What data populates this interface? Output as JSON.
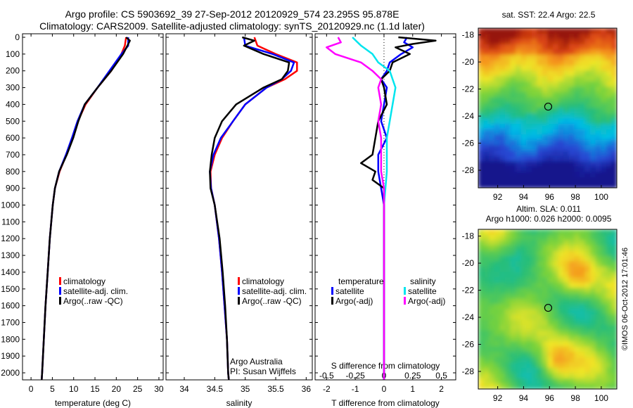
{
  "header": {
    "title1": "Argo profile: CS 5903692_39 27-Sep-2012 20120929_574 23.295S 95.878E",
    "title2": "Climatology: CARS2009. Satellite-adjusted climatology: synTS_20120929.nc (1.1d later)"
  },
  "right": {
    "sst_title": "sat. SST: 22.4 Argo: 22.5",
    "sla_title1": "Altim. SLA: 0.011",
    "sla_title2": "Argo h1000: 0.026 h2000: 0.0095",
    "side_text": "©IMOS 06-Oct-2012 17:01:46"
  },
  "colors": {
    "climatology": "#ff0000",
    "satellite": "#0000ff",
    "argo": "#000000",
    "sat_sal": "#00e5ee",
    "argo_sal": "#ff00ff"
  },
  "legends": {
    "clim": "climatology",
    "sat_clim": "satellite-adj. clim.",
    "argo_raw": "Argo(..raw -QC)",
    "temperature": "temperature",
    "salinity": "salinity",
    "satellite": "satellite",
    "argo_adj": "Argo(-adj)"
  },
  "notes": {
    "line1": "Argo Australia",
    "line2": "PI: Susan Wijffels"
  },
  "chart_data": [
    {
      "type": "line",
      "xlabel": "temperature (deg C)",
      "xlim": [
        -2,
        31
      ],
      "xticks": [
        0,
        5,
        10,
        15,
        20,
        25,
        30
      ],
      "ylim": [
        2080,
        0
      ],
      "yticks": [
        0,
        100,
        200,
        300,
        400,
        500,
        600,
        700,
        800,
        900,
        1000,
        1100,
        1200,
        1300,
        1400,
        1500,
        1600,
        1700,
        1800,
        1900,
        2000
      ],
      "series": [
        {
          "name": "climatology",
          "color": "red",
          "depth": [
            0,
            50,
            100,
            200,
            300,
            400,
            500,
            600,
            700,
            800,
            900,
            1000,
            1200,
            1400,
            1600,
            1800,
            2000,
            2040
          ],
          "values": [
            22.3,
            22.0,
            21.2,
            18.8,
            15.6,
            12.8,
            11.0,
            9.7,
            8.3,
            6.7,
            5.6,
            5.1,
            4.4,
            3.9,
            3.4,
            3.0,
            2.6,
            2.5
          ]
        },
        {
          "name": "satellite-adj. clim.",
          "color": "blue",
          "depth": [
            0,
            50,
            100,
            200,
            300,
            400,
            500,
            600,
            700,
            800,
            900,
            1000,
            1200,
            1400,
            1600,
            1800,
            2000,
            2040
          ],
          "values": [
            22.8,
            22.8,
            21.2,
            18.4,
            15.6,
            12.6,
            10.9,
            9.6,
            8.2,
            6.6,
            5.6,
            5.1,
            4.4,
            3.9,
            3.4,
            3.0,
            2.6,
            2.5
          ]
        },
        {
          "name": "Argo(..raw -QC)",
          "color": "black",
          "depth": [
            0,
            20,
            50,
            100,
            200,
            300,
            400,
            500,
            600,
            700,
            800,
            900,
            1000,
            1200,
            1400,
            1600,
            1800,
            2000,
            2040
          ],
          "values": [
            22.3,
            23.2,
            22.6,
            21.6,
            18.8,
            15.6,
            12.6,
            11.1,
            9.9,
            8.4,
            6.6,
            5.6,
            5.1,
            4.4,
            3.9,
            3.4,
            3.0,
            2.6,
            2.5
          ]
        }
      ]
    },
    {
      "type": "line",
      "xlabel": "salinity",
      "xlim": [
        33.7,
        36.1
      ],
      "xticks": [
        34,
        34.5,
        35,
        35.5,
        36
      ],
      "ylim": [
        2080,
        0
      ],
      "series": [
        {
          "name": "climatology",
          "color": "red",
          "depth": [
            0,
            50,
            100,
            150,
            200,
            250,
            300,
            400,
            500,
            600,
            700,
            800,
            900,
            1000,
            1200,
            1400,
            1600,
            1800,
            2000,
            2040
          ],
          "values": [
            35.15,
            35.2,
            35.5,
            35.85,
            35.85,
            35.65,
            35.35,
            35.0,
            34.8,
            34.62,
            34.5,
            34.43,
            34.44,
            34.5,
            34.57,
            34.62,
            34.66,
            34.7,
            34.72,
            34.73
          ]
        },
        {
          "name": "satellite-adj. clim.",
          "color": "blue",
          "depth": [
            0,
            50,
            100,
            150,
            200,
            250,
            300,
            400,
            500,
            600,
            700,
            800,
            900,
            1000,
            1200,
            1400,
            1600,
            1800,
            2000,
            2040
          ],
          "values": [
            34.98,
            35.0,
            35.45,
            35.8,
            35.75,
            35.6,
            35.35,
            35.0,
            34.8,
            34.6,
            34.48,
            34.42,
            34.44,
            34.5,
            34.57,
            34.62,
            34.66,
            34.7,
            34.72,
            34.73
          ]
        },
        {
          "name": "Argo(..raw -QC)",
          "color": "black",
          "depth": [
            0,
            20,
            50,
            100,
            150,
            200,
            250,
            300,
            400,
            500,
            600,
            700,
            800,
            900,
            1000,
            1200,
            1400,
            1600,
            1800,
            2000,
            2040
          ],
          "values": [
            34.95,
            35.15,
            34.98,
            35.3,
            35.72,
            35.7,
            35.6,
            35.3,
            34.85,
            34.62,
            34.5,
            34.45,
            34.42,
            34.43,
            34.5,
            34.58,
            34.63,
            34.67,
            34.7,
            34.72,
            34.73
          ]
        }
      ]
    },
    {
      "type": "line",
      "xlabel": "T difference from climatology",
      "xlabel2": "S difference from climatology",
      "xlim": [
        -2.4,
        2.5
      ],
      "xticks": [
        -2,
        -1,
        0,
        1,
        2
      ],
      "xticks2": [
        "-0.5",
        "-0.25",
        "0",
        "0.25",
        "0.5"
      ],
      "ylim": [
        2080,
        0
      ],
      "series": [
        {
          "name": "temperature satellite",
          "color": "blue",
          "depth": [
            0,
            30,
            60,
            100,
            150,
            200,
            250,
            300,
            400,
            500,
            600,
            700,
            800,
            900,
            1000,
            1200,
            1400,
            1600,
            1800,
            2000,
            2040
          ],
          "values": [
            0.8,
            0.7,
            1.0,
            0.6,
            0.2,
            0.1,
            -0.1,
            0.1,
            0.0,
            -0.1,
            0.1,
            -0.2,
            -0.2,
            -0.1,
            0.0,
            0.0,
            0.0,
            0.0,
            0.0,
            0.0,
            0.0
          ]
        },
        {
          "name": "temperature Argo(-adj)",
          "color": "black",
          "depth": [
            0,
            20,
            40,
            60,
            100,
            150,
            200,
            250,
            300,
            400,
            500,
            600,
            700,
            750,
            800,
            850,
            900,
            1000,
            1200,
            1400,
            1600,
            1800,
            2000,
            2040
          ],
          "values": [
            0.5,
            1.8,
            1.0,
            0.4,
            0.9,
            0.3,
            0.2,
            -0.1,
            0.0,
            0.1,
            -0.2,
            -0.3,
            -0.4,
            -0.8,
            -0.3,
            -0.4,
            0.0,
            0.0,
            0.0,
            0.0,
            0.0,
            0.0,
            0.0,
            0.0
          ]
        },
        {
          "name": "salinity satellite",
          "color": "cyan",
          "depth": [
            0,
            50,
            100,
            150,
            200,
            250,
            300,
            400,
            500,
            600,
            700,
            800,
            900,
            1000,
            1200,
            1400,
            1600,
            1800,
            2000,
            2040
          ],
          "values": [
            -1.1,
            -0.8,
            -0.4,
            -0.2,
            0.2,
            0.3,
            0.4,
            0.3,
            0.2,
            0.1,
            0.1,
            0.1,
            0.05,
            0.0,
            0.0,
            0.0,
            0.0,
            0.0,
            0.0,
            0.0
          ]
        },
        {
          "name": "salinity Argo(-adj)",
          "color": "magenta",
          "depth": [
            0,
            30,
            60,
            100,
            150,
            200,
            250,
            300,
            400,
            500,
            600,
            700,
            800,
            900,
            1000,
            1200,
            1400,
            1600,
            1800,
            2000,
            2040
          ],
          "values": [
            -1.6,
            -1.5,
            -2.0,
            -1.7,
            -0.8,
            -0.4,
            -0.1,
            -0.2,
            -0.1,
            -0.2,
            -0.1,
            -0.1,
            -0.1,
            0.0,
            0.0,
            0.0,
            0.0,
            0.0,
            0.0,
            0.0,
            0.0
          ]
        }
      ]
    },
    {
      "type": "heatmap",
      "title": "sat. SST: 22.4 Argo: 22.5",
      "xlim": [
        90.5,
        101.2
      ],
      "xticks": [
        92,
        94,
        96,
        98,
        100
      ],
      "ylim": [
        -29.3,
        -17.5
      ],
      "yticks": [
        -18,
        -20,
        -22,
        -24,
        -26,
        -28
      ],
      "marker": [
        95.9,
        -23.3
      ]
    },
    {
      "type": "heatmap",
      "title": "Argo h1000: 0.026 h2000: 0.0095",
      "xlim": [
        90.5,
        101.2
      ],
      "xticks": [
        92,
        94,
        96,
        98,
        100
      ],
      "ylim": [
        -29.3,
        -17.5
      ],
      "yticks": [
        -18,
        -20,
        -22,
        -24,
        -26,
        -28
      ],
      "marker": [
        95.9,
        -23.3
      ]
    }
  ]
}
